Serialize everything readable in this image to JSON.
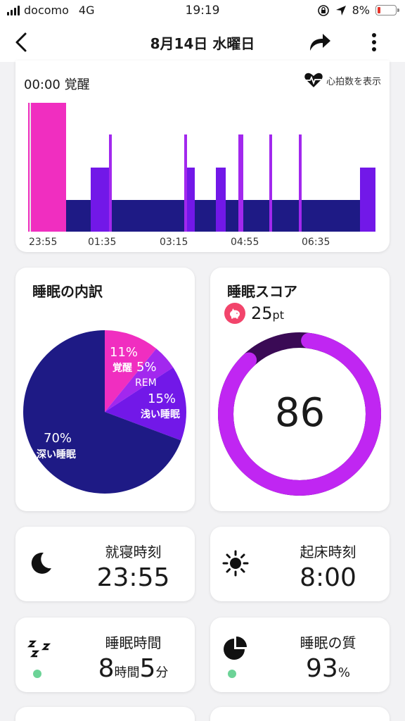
{
  "status_bar": {
    "carrier": "docomo",
    "network": "4G",
    "time": "19:19",
    "battery": "8%"
  },
  "header": {
    "title": "8月14日 水曜日"
  },
  "timeline": {
    "time_label": "00:00 覚醒",
    "heart_button": "心拍数を表示",
    "ticks": [
      "23:55",
      "01:35",
      "03:15",
      "04:55",
      "06:35"
    ],
    "colors": {
      "awake": "#f02ec0",
      "rem": "#a228ee",
      "light": "#7218e8",
      "deep": "#1e1a85"
    }
  },
  "breakdown": {
    "title": "睡眠の内訳",
    "segments": [
      {
        "name": "覚醒",
        "percent": "11%",
        "value": 11,
        "color": "#f02ec0"
      },
      {
        "name": "REM",
        "percent": "5%",
        "value": 5,
        "color": "#a228ee"
      },
      {
        "name": "浅い睡眠",
        "percent": "15%",
        "value": 15,
        "color": "#7218e8"
      },
      {
        "name": "深い睡眠",
        "percent": "70%",
        "value": 70,
        "color": "#1e1a85"
      }
    ]
  },
  "score": {
    "title": "睡眠スコア",
    "points": "25",
    "points_unit": "pt",
    "value": "86",
    "fraction": 0.86,
    "ring_color": "#c026f2",
    "ring_bg": "#3a0a55"
  },
  "stats": {
    "bedtime": {
      "label": "就寝時刻",
      "value": "23:55"
    },
    "wake": {
      "label": "起床時刻",
      "value": "8:00"
    },
    "duration": {
      "label": "睡眠時間",
      "hours": "8",
      "hours_unit": "時間",
      "minutes": "5",
      "minutes_unit": "分"
    },
    "quality": {
      "label": "睡眠の質",
      "value": "93",
      "unit": "%"
    }
  }
}
